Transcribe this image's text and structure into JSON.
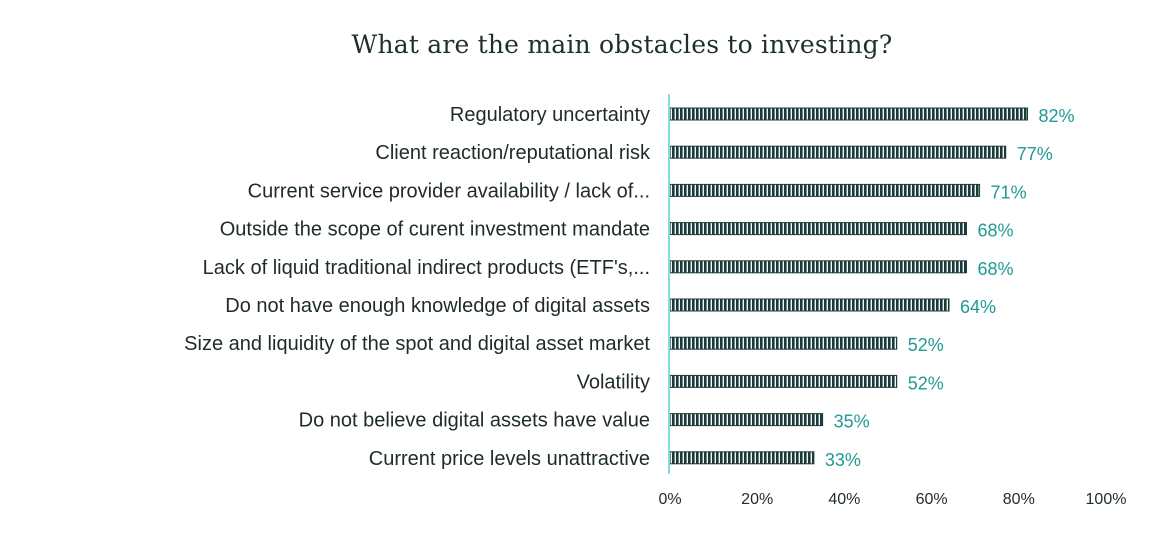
{
  "chart_data": {
    "type": "bar",
    "orientation": "horizontal",
    "title": "What are the main obstacles to investing?",
    "xlabel": "",
    "ylabel": "",
    "categories": [
      "Regulatory uncertainty",
      "Client reaction/reputational risk",
      "Current service provider availability / lack of...",
      "Outside the scope of curent investment mandate",
      "Lack of liquid traditional indirect products (ETF's,...",
      "Do not have enough knowledge of digital assets",
      "Size and liquidity of the spot and digital asset market",
      "Volatility",
      "Do not believe digital assets have value",
      "Current price levels unattractive"
    ],
    "values": [
      82,
      77,
      71,
      68,
      68,
      64,
      52,
      52,
      35,
      33
    ],
    "value_labels": [
      "82%",
      "77%",
      "71%",
      "68%",
      "68%",
      "64%",
      "52%",
      "52%",
      "35%",
      "33%"
    ],
    "xlim": [
      0,
      100
    ],
    "x_ticks": [
      0,
      20,
      40,
      60,
      80,
      100
    ],
    "x_tick_labels": [
      "0%",
      "20%",
      "40%",
      "60%",
      "80%",
      "100%"
    ],
    "grid": false,
    "legend": "none",
    "colors": {
      "bar": "#1d3a3a",
      "bar_stripe": "#f2f7f7",
      "value_label": "#1f9a94",
      "axis_line": "#7ddedd",
      "text": "#1f2b2b"
    }
  }
}
